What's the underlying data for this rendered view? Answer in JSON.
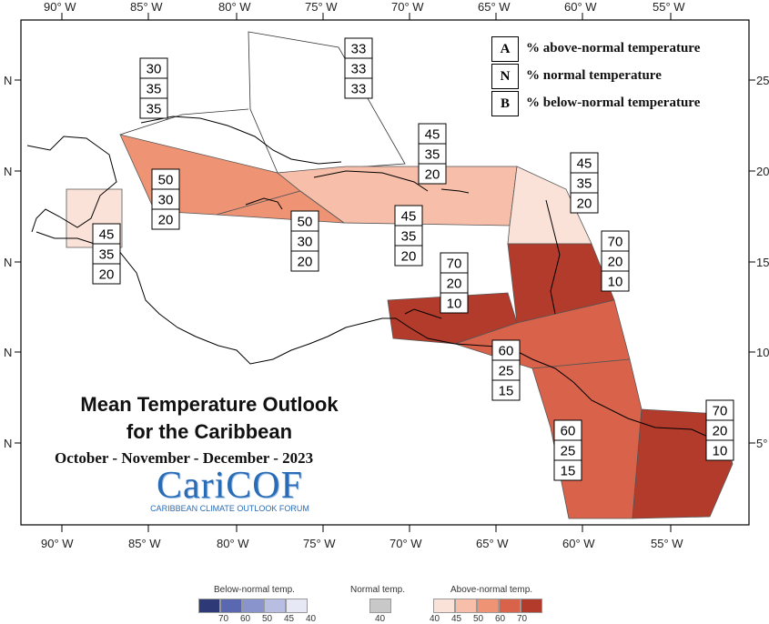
{
  "lon_labels": [
    "90° W",
    "85° W",
    "80° W",
    "75° W",
    "70° W",
    "65° W",
    "60° W",
    "55° W"
  ],
  "lat_left_labels": [
    "N",
    "N",
    "N",
    "N",
    "N"
  ],
  "lat_right_labels": [
    "25",
    "20",
    "15",
    "10",
    "5°"
  ],
  "title_line1": "Mean Temperature Outlook",
  "title_line2": "for the Caribbean",
  "subtitle": "October - November - December - 2023",
  "logo_main": "CariCOF",
  "logo_sub": "CARIBBEAN CLIMATE OUTLOOK FORUM",
  "legend": [
    {
      "letter": "A",
      "text": "% above-normal temperature"
    },
    {
      "letter": "N",
      "text": "% normal temperature"
    },
    {
      "letter": "B",
      "text": "% below-normal temperature"
    }
  ],
  "colorbar": {
    "below_title": "Below-normal temp.",
    "normal_title": "Normal temp.",
    "above_title": "Above-normal temp.",
    "below_ticks": [
      "70",
      "60",
      "50",
      "45",
      "40"
    ],
    "normal_ticks": [
      "40"
    ],
    "above_ticks": [
      "40",
      "45",
      "50",
      "60",
      "70"
    ],
    "below_colors": [
      "#2e3a78",
      "#5a67b1",
      "#8a94cc",
      "#b8bee2",
      "#e6e8f5"
    ],
    "normal_color": "#c8c8c8",
    "above_colors": [
      "#fbe2d8",
      "#f7bfa9",
      "#ee9475",
      "#d9624a",
      "#b23b2b"
    ]
  },
  "forecasts": [
    {
      "a": "30",
      "n": "35",
      "b": "35"
    },
    {
      "a": "33",
      "n": "33",
      "b": "33"
    },
    {
      "a": "50",
      "n": "30",
      "b": "20"
    },
    {
      "a": "45",
      "n": "35",
      "b": "20"
    },
    {
      "a": "50",
      "n": "30",
      "b": "20"
    },
    {
      "a": "45",
      "n": "35",
      "b": "20"
    },
    {
      "a": "45",
      "n": "35",
      "b": "20"
    },
    {
      "a": "45",
      "n": "35",
      "b": "20"
    },
    {
      "a": "70",
      "n": "20",
      "b": "10"
    },
    {
      "a": "70",
      "n": "20",
      "b": "10"
    },
    {
      "a": "60",
      "n": "25",
      "b": "15"
    },
    {
      "a": "60",
      "n": "25",
      "b": "15"
    },
    {
      "a": "70",
      "n": "20",
      "b": "10"
    }
  ]
}
